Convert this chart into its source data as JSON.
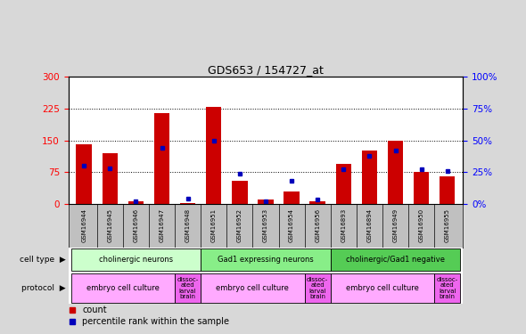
{
  "title": "GDS653 / 154727_at",
  "samples": [
    "GSM16944",
    "GSM16945",
    "GSM16946",
    "GSM16947",
    "GSM16948",
    "GSM16951",
    "GSM16952",
    "GSM16953",
    "GSM16954",
    "GSM16956",
    "GSM16893",
    "GSM16894",
    "GSM16949",
    "GSM16950",
    "GSM16955"
  ],
  "counts": [
    140,
    120,
    5,
    215,
    2,
    228,
    55,
    10,
    30,
    5,
    95,
    125,
    148,
    75,
    65
  ],
  "percentiles": [
    30,
    28,
    2,
    44,
    4,
    50,
    24,
    2,
    18,
    3,
    27,
    38,
    42,
    27,
    26
  ],
  "ylim_left": [
    0,
    300
  ],
  "ylim_right": [
    0,
    100
  ],
  "yticks_left": [
    0,
    75,
    150,
    225,
    300
  ],
  "yticks_right": [
    0,
    25,
    50,
    75,
    100
  ],
  "bar_color": "#cc0000",
  "dot_color": "#0000bb",
  "bg_color": "#d8d8d8",
  "plot_bg": "#ffffff",
  "tick_bg": "#c0c0c0",
  "cell_type_groups": [
    {
      "label": "cholinergic neurons",
      "start": 0,
      "end": 5,
      "color": "#ccffcc"
    },
    {
      "label": "Gad1 expressing neurons",
      "start": 5,
      "end": 10,
      "color": "#88ee88"
    },
    {
      "label": "cholinergic/Gad1 negative",
      "start": 10,
      "end": 15,
      "color": "#55cc55"
    }
  ],
  "protocol_groups": [
    {
      "label": "embryo cell culture",
      "start": 0,
      "end": 4,
      "color": "#ffaaff"
    },
    {
      "label": "dissoc-\nated\nlarval\nbrain",
      "start": 4,
      "end": 5,
      "color": "#ee66ee"
    },
    {
      "label": "embryo cell culture",
      "start": 5,
      "end": 9,
      "color": "#ffaaff"
    },
    {
      "label": "dissoc-\nated\nlarval\nbrain",
      "start": 9,
      "end": 10,
      "color": "#ee66ee"
    },
    {
      "label": "embryo cell culture",
      "start": 10,
      "end": 14,
      "color": "#ffaaff"
    },
    {
      "label": "dissoc-\nated\nlarval\nbrain",
      "start": 14,
      "end": 15,
      "color": "#ee66ee"
    }
  ]
}
